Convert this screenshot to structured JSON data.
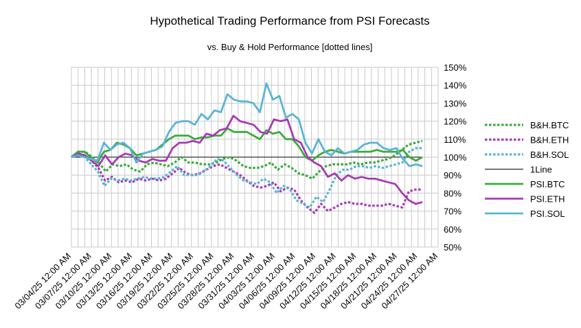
{
  "chart_data": {
    "type": "line",
    "title": "Hypothetical Trading Performance from PSI Forecasts",
    "subtitle": "vs. Buy & Hold Performance [dotted lines]",
    "xlabel": "",
    "ylabel": "",
    "ylim": [
      50,
      150
    ],
    "yticks": [
      "50%",
      "60%",
      "70%",
      "80%",
      "90%",
      "100%",
      "110%",
      "120%",
      "130%",
      "140%",
      "150%"
    ],
    "grid": true,
    "legend_position": "right",
    "x_tick_labels": [
      "03/04/25 12:00 AM",
      "03/07/25 12:00 AM",
      "03/10/25 12:00 AM",
      "03/13/25 12:00 AM",
      "03/16/25 12:00 AM",
      "03/19/25 12:00 AM",
      "03/22/25 12:00 AM",
      "03/25/25 12:00 AM",
      "03/28/25 12:00 AM",
      "03/31/25 12:00 AM",
      "04/03/25 12:00 AM",
      "04/06/25 12:00 AM",
      "04/09/25 12:00 AM",
      "04/12/25 12:00 AM",
      "04/15/25 12:00 AM",
      "04/18/25 12:00 AM",
      "04/21/25 12:00 AM",
      "04/24/25 12:00 AM",
      "04/27/25 12:00 AM"
    ],
    "series": [
      {
        "name": "B&H.BTC",
        "color": "#3aab3a",
        "style": "dotted",
        "values": [
          100,
          103,
          103,
          100,
          97,
          92,
          96,
          95,
          96,
          93,
          92,
          96,
          97,
          96,
          95,
          97,
          100,
          97,
          97,
          96,
          96,
          97,
          99,
          100,
          98,
          95,
          94,
          94,
          95,
          97,
          93,
          96,
          94,
          91,
          90,
          88,
          92,
          95,
          96,
          96,
          96,
          97,
          96,
          97,
          97,
          98,
          99,
          101,
          104,
          107,
          108,
          109
        ]
      },
      {
        "name": "B&H.ETH",
        "color": "#a83ab4",
        "style": "dotted",
        "values": [
          100,
          102,
          101,
          98,
          94,
          87,
          89,
          86,
          87,
          86,
          88,
          87,
          88,
          87,
          88,
          91,
          94,
          91,
          90,
          91,
          93,
          95,
          96,
          94,
          92,
          90,
          87,
          84,
          83,
          84,
          86,
          81,
          83,
          82,
          76,
          72,
          69,
          74,
          70,
          72,
          74,
          75,
          74,
          74,
          73,
          73,
          73,
          74,
          73,
          72,
          81,
          82,
          82
        ]
      },
      {
        "name": "B&H.SOL",
        "color": "#5ab4d4",
        "style": "dotted",
        "values": [
          100,
          101,
          100,
          96,
          92,
          84,
          88,
          87,
          88,
          87,
          88,
          89,
          88,
          88,
          89,
          92,
          95,
          90,
          90,
          90,
          92,
          95,
          99,
          98,
          94,
          90,
          87,
          86,
          85,
          88,
          86,
          80,
          84,
          82,
          76,
          74,
          72,
          78,
          75,
          82,
          90,
          93,
          93,
          95,
          95,
          94,
          95,
          94,
          95,
          96,
          97,
          103,
          105,
          105
        ]
      },
      {
        "name": "1Line",
        "color": "#000000",
        "style": "thin",
        "values": [
          100,
          100,
          100,
          100,
          100,
          100,
          100,
          100,
          100,
          100,
          100,
          100,
          100,
          100,
          100,
          100,
          100,
          100,
          100,
          100,
          100,
          100,
          100,
          100,
          100,
          100,
          100,
          100,
          100,
          100,
          100,
          100,
          100,
          100,
          100,
          100,
          100,
          100,
          100,
          100,
          100,
          100,
          100,
          100,
          100,
          100,
          100,
          100,
          100,
          100,
          100,
          100,
          100,
          100
        ]
      },
      {
        "name": "PSI.BTC",
        "color": "#3aab3a",
        "style": "solid",
        "values": [
          100,
          103,
          103,
          100,
          97,
          103,
          104,
          108,
          107,
          105,
          101,
          102,
          103,
          104,
          107,
          110,
          112,
          112,
          112,
          110,
          111,
          111,
          112,
          112,
          116,
          114,
          114,
          114,
          112,
          110,
          115,
          113,
          114,
          110,
          110,
          106,
          100,
          98,
          101,
          103,
          104,
          103,
          102,
          103,
          103,
          103,
          103,
          104,
          103,
          103,
          103,
          104,
          100,
          98,
          100
        ]
      },
      {
        "name": "PSI.ETH",
        "color": "#a83ab4",
        "style": "solid",
        "values": [
          100,
          102,
          101,
          98,
          95,
          101,
          96,
          100,
          102,
          101,
          98,
          97,
          99,
          98,
          98,
          105,
          108,
          108,
          109,
          108,
          113,
          112,
          115,
          116,
          123,
          120,
          119,
          118,
          114,
          113,
          121,
          120,
          121,
          110,
          108,
          100,
          97,
          95,
          89,
          91,
          87,
          90,
          88,
          89,
          88,
          88,
          87,
          86,
          85,
          80,
          76,
          74,
          75
        ]
      },
      {
        "name": "PSI.SOL",
        "color": "#5ab4d4",
        "style": "solid",
        "values": [
          100,
          101,
          100,
          99,
          98,
          108,
          104,
          107,
          108,
          105,
          97,
          102,
          103,
          104,
          106,
          114,
          119,
          120,
          120,
          118,
          124,
          121,
          126,
          125,
          135,
          132,
          131,
          131,
          130,
          125,
          141,
          132,
          134,
          122,
          124,
          121,
          108,
          102,
          110,
          103,
          101,
          105,
          102,
          103,
          104,
          107,
          108,
          108,
          105,
          104,
          105,
          99,
          95,
          96,
          95
        ]
      }
    ]
  }
}
